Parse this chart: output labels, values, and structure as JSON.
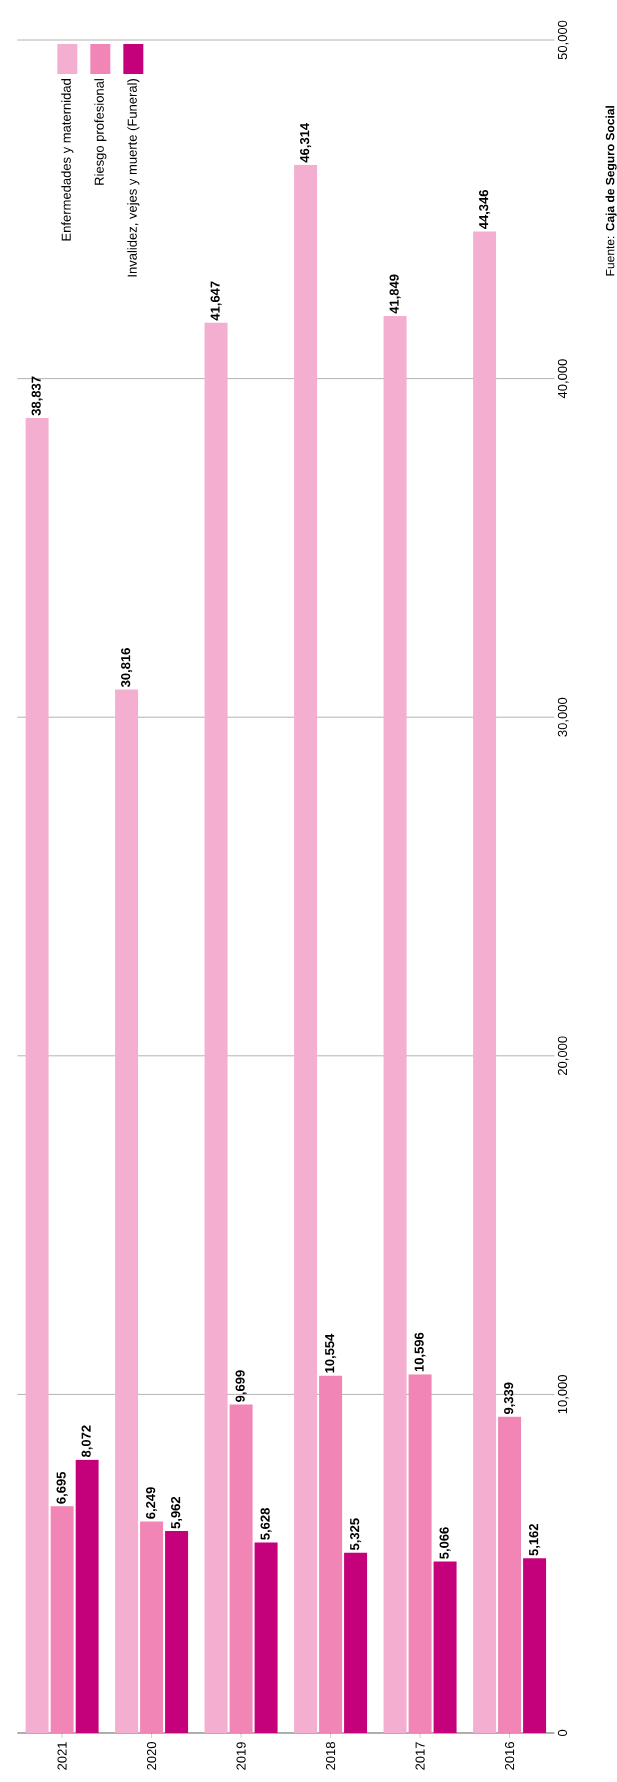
{
  "chart_data": {
    "type": "bar",
    "categories": [
      "2021",
      "2020",
      "2019",
      "2018",
      "2017",
      "2016"
    ],
    "series": [
      {
        "name": "Enfermedades y maternidad",
        "color": "#f4aecf",
        "values": [
          38837,
          30816,
          41647,
          46314,
          41849,
          44346
        ],
        "value_labels": [
          "38,837",
          "30,816",
          "41,647",
          "46,314",
          "41,849",
          "44,346"
        ]
      },
      {
        "name": "Riesgo profesional",
        "color": "#f185b5",
        "values": [
          6695,
          6249,
          9699,
          10554,
          10596,
          9339
        ],
        "value_labels": [
          "6,695",
          "6,249",
          "9,699",
          "10,554",
          "10,596",
          "9,339"
        ]
      },
      {
        "name": "Invalidez, vejes y muerte (Funeral)",
        "color": "#c4007a",
        "values": [
          8072,
          5962,
          5628,
          5325,
          5066,
          5162
        ],
        "value_labels": [
          "8,072",
          "5,962",
          "5,628",
          "5,325",
          "5,066",
          "5,162"
        ]
      }
    ],
    "ylim": [
      0,
      50000
    ],
    "yticks": [
      0,
      {
        "value": 10000,
        "label": "10,000"
      },
      {
        "value": 20000,
        "label": "20,000"
      },
      {
        "value": 30000,
        "label": "30,000"
      },
      {
        "value": 40000,
        "label": "40,000"
      },
      {
        "value": 50000,
        "label": "50,000"
      }
    ],
    "grid": "y",
    "legend": "top left",
    "annotations": [
      "Fuente: **Caja de Seguro Social**"
    ]
  }
}
